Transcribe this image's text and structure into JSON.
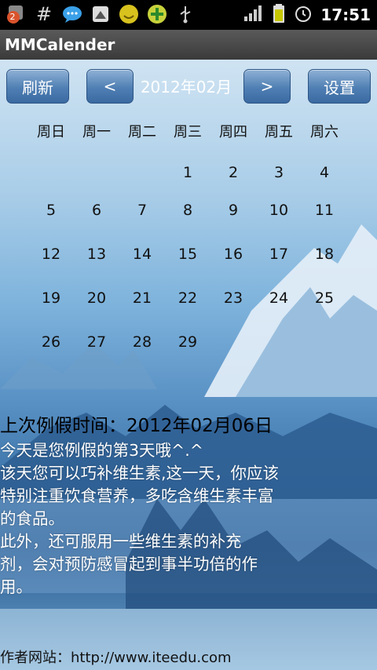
{
  "status_bar": {
    "notification_count": "2",
    "time": "17:51",
    "icons": [
      "notification-badge-icon",
      "hash-icon",
      "chat-bubble-icon",
      "sms-icon",
      "smiley-icon",
      "game-icon",
      "usb-icon",
      "signal-icon",
      "battery-icon",
      "alarm-icon"
    ]
  },
  "app": {
    "title": "MMCalender"
  },
  "toolbar": {
    "refresh_label": "刷新",
    "prev_label": "<",
    "month_label": "2012年02月",
    "next_label": ">",
    "settings_label": "设置"
  },
  "calendar": {
    "weekdays": [
      "周日",
      "周一",
      "周二",
      "周三",
      "周四",
      "周五",
      "周六"
    ],
    "weeks": [
      [
        "",
        "",
        "",
        "1",
        "2",
        "3",
        "4"
      ],
      [
        "5",
        "6",
        "7",
        "8",
        "9",
        "10",
        "11"
      ],
      [
        "12",
        "13",
        "14",
        "15",
        "16",
        "17",
        "18"
      ],
      [
        "19",
        "20",
        "21",
        "22",
        "23",
        "24",
        "25"
      ],
      [
        "26",
        "27",
        "28",
        "29",
        "",
        "",
        ""
      ]
    ]
  },
  "info": {
    "last_period": "上次例假时间：2012年02月06日",
    "advice_lines": [
      "今天是您例假的第3天哦^.^",
      "该天您可以巧补维生素,这一天，你应该",
      "特别注重饮食营养，多吃含维生素丰富",
      "的食品。",
      "此外，还可服用一些维生素的补充",
      "剂，会对预防感冒起到事半功倍的作",
      "用。"
    ]
  },
  "footer": {
    "text": "作者网站：http://www.iteedu.com"
  }
}
